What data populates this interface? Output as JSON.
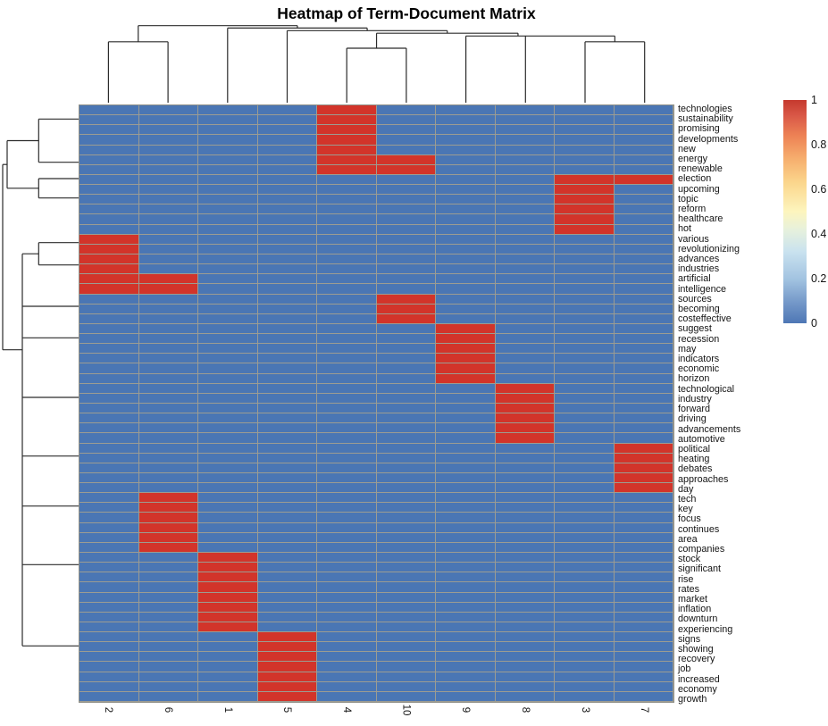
{
  "title": "Heatmap of Term-Document Matrix",
  "chart_data": {
    "type": "heatmap",
    "title": "Heatmap of Term-Document Matrix",
    "columns": [
      "2",
      "6",
      "1",
      "5",
      "4",
      "10",
      "9",
      "8",
      "3",
      "7"
    ],
    "rows": [
      "technologies",
      "sustainability",
      "promising",
      "developments",
      "new",
      "energy",
      "renewable",
      "election",
      "upcoming",
      "topic",
      "reform",
      "healthcare",
      "hot",
      "various",
      "revolutionizing",
      "advances",
      "industries",
      "artificial",
      "intelligence",
      "sources",
      "becoming",
      "costeffective",
      "suggest",
      "recession",
      "may",
      "indicators",
      "economic",
      "horizon",
      "technological",
      "industry",
      "forward",
      "driving",
      "advancements",
      "automotive",
      "political",
      "heating",
      "debates",
      "approaches",
      "day",
      "tech",
      "key",
      "focus",
      "continues",
      "area",
      "companies",
      "stock",
      "significant",
      "rise",
      "rates",
      "market",
      "inflation",
      "downturn",
      "experiencing",
      "signs",
      "showing",
      "recovery",
      "job",
      "increased",
      "economy",
      "growth"
    ],
    "values": {
      "present": 1,
      "absent": 0
    },
    "ones_by_column": {
      "2": [
        14,
        15,
        16,
        17,
        18,
        19
      ],
      "6": [
        18,
        19,
        40,
        41,
        42,
        43,
        44,
        45
      ],
      "1": [
        46,
        47,
        48,
        49,
        50,
        51,
        52,
        53
      ],
      "5": [
        54,
        55,
        56,
        57,
        58,
        59,
        60
      ],
      "4": [
        1,
        2,
        3,
        4,
        5,
        6,
        7
      ],
      "10": [
        6,
        7,
        20,
        21,
        22
      ],
      "9": [
        23,
        24,
        25,
        26,
        27,
        28
      ],
      "8": [
        29,
        30,
        31,
        32,
        33,
        34
      ],
      "3": [
        8,
        9,
        10,
        11,
        12,
        13
      ],
      "7": [
        8,
        35,
        36,
        37,
        38,
        39
      ]
    },
    "colors": {
      "cell_high": "#d2342a",
      "cell_low": "#4a76b4",
      "grid_line": "#9c9c92",
      "dendrogram_line": "#2b2b2b"
    },
    "legend": {
      "position": "right",
      "min": 0,
      "max": 1,
      "tick_values": [
        1,
        0.8,
        0.6,
        0.4,
        0.2,
        0
      ],
      "tick_labels": [
        "1",
        "0.8",
        "0.6",
        "0.4",
        "0.2",
        "0"
      ]
    },
    "dendrograms": {
      "top": {
        "orientation": "columns",
        "segments": [
          [
            121.4,
            115,
            121.4,
            46.8
          ],
          [
            188.1,
            115,
            188.1,
            46.8
          ],
          [
            254.8,
            115,
            254.8,
            31.4
          ],
          [
            321.5,
            115,
            321.5,
            34.3
          ],
          [
            388.2,
            115,
            388.2,
            54
          ],
          [
            454.9,
            115,
            454.9,
            54
          ],
          [
            521.6,
            115,
            521.6,
            40.3
          ],
          [
            588.3,
            115,
            588.3,
            40.3
          ],
          [
            655,
            115,
            655,
            46.8
          ],
          [
            721.7,
            115,
            721.7,
            46.8
          ],
          [
            121.4,
            46.8,
            188.1,
            46.8
          ],
          [
            388.2,
            54,
            454.9,
            54
          ],
          [
            655,
            46.8,
            721.7,
            46.8
          ],
          [
            521.6,
            40.3,
            688.35,
            40.3
          ],
          [
            421.55,
            37.2,
            579.95,
            37.2
          ],
          [
            321.5,
            34.3,
            500.75,
            34.3
          ],
          [
            254.8,
            31.4,
            411.1,
            31.4
          ],
          [
            154.75,
            28.7,
            332.95,
            28.7
          ],
          [
            154.75,
            46.8,
            154.75,
            28.7
          ],
          [
            688.35,
            46.8,
            688.35,
            40.3
          ],
          [
            421.55,
            54,
            421.55,
            37.2
          ],
          [
            579.95,
            40.3,
            579.95,
            37.2
          ],
          [
            500.75,
            37.2,
            500.75,
            34.3
          ],
          [
            411.1,
            34.3,
            411.1,
            31.4
          ],
          [
            332.95,
            31.4,
            332.95,
            28.7
          ]
        ]
      },
      "left": {
        "orientation": "rows",
        "segments": [
          [
            43.3,
            133.3,
            43.3,
            181.7
          ],
          [
            43.3,
            200,
            43.3,
            221.7
          ],
          [
            8,
            157.5,
            8,
            210.8
          ],
          [
            43.3,
            271.7,
            43.3,
            296.7
          ],
          [
            25,
            284.2,
            25,
            723.3
          ],
          [
            3,
            184.2,
            3,
            391.7
          ],
          [
            43.3,
            133.3,
            88,
            133.3
          ],
          [
            43.3,
            181.7,
            88,
            181.7
          ],
          [
            8,
            157.5,
            43.3,
            157.5
          ],
          [
            43.3,
            200,
            88,
            200
          ],
          [
            43.3,
            221.7,
            88,
            221.7
          ],
          [
            8,
            210.8,
            43.3,
            210.8
          ],
          [
            3,
            184.2,
            8,
            184.2
          ],
          [
            43.3,
            271.7,
            88,
            271.7
          ],
          [
            43.3,
            296.7,
            88,
            296.7
          ],
          [
            25,
            284.2,
            43.3,
            284.2
          ],
          [
            25,
            343,
            88,
            343
          ],
          [
            25,
            378.3,
            88,
            378.3
          ],
          [
            25,
            445,
            88,
            445
          ],
          [
            25,
            510.7,
            88,
            510.7
          ],
          [
            25,
            566.7,
            88,
            566.7
          ],
          [
            25,
            632.3,
            88,
            632.3
          ],
          [
            25,
            723.3,
            88,
            723.3
          ],
          [
            3,
            391.7,
            25,
            391.7
          ]
        ]
      }
    }
  }
}
